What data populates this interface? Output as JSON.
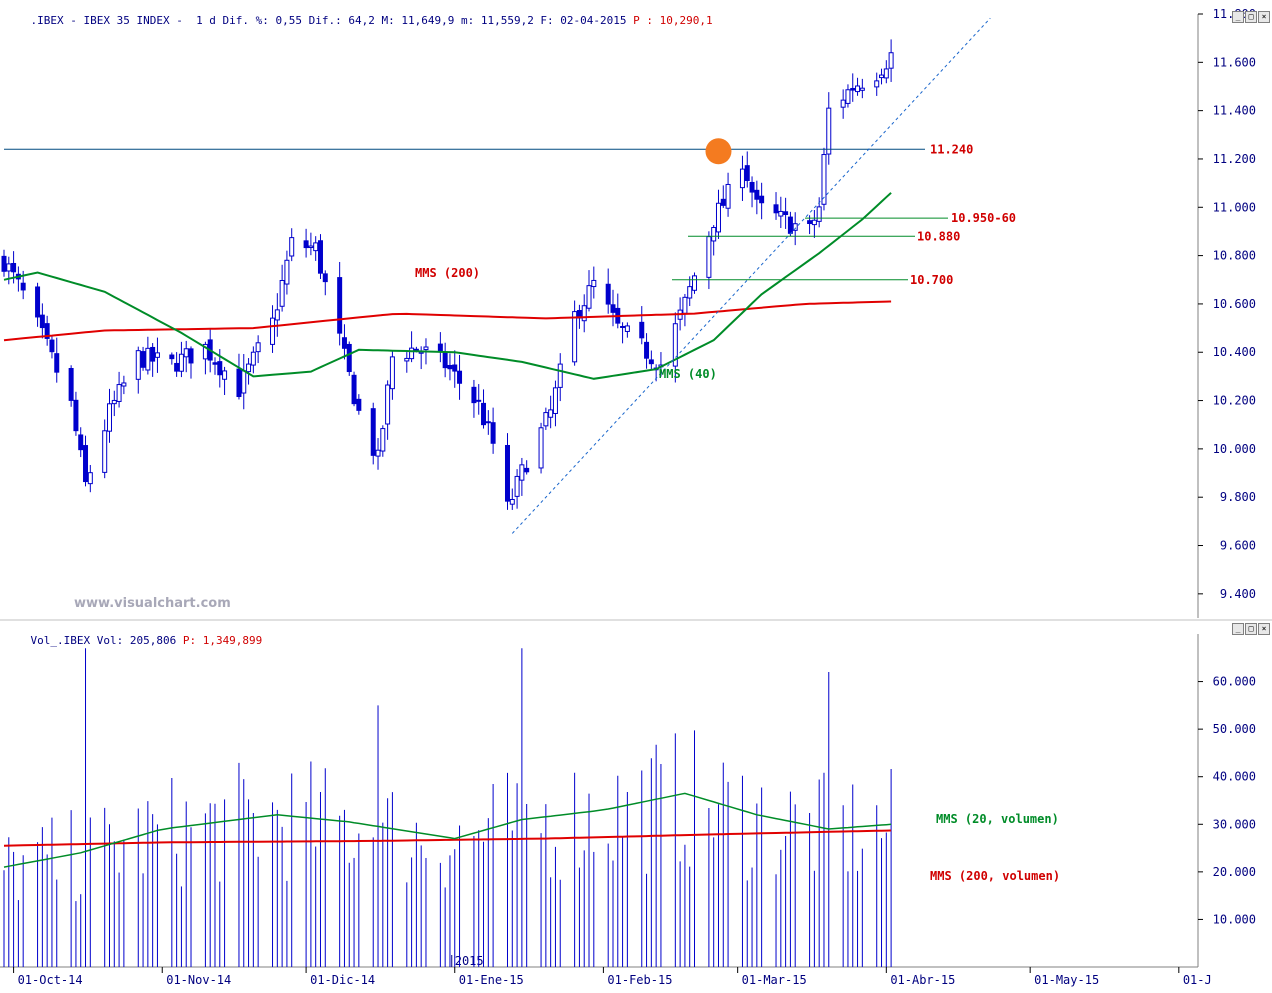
{
  "header_price": {
    "text_pre": ".IBEX - IBEX 35 INDEX -  1 d Dif. %: 0,55 Dif.: 64,2 M: 11,649,9 m: 11,559,2 F: 02-04-2015 ",
    "text_p": "P : 10,290,1"
  },
  "header_volume": {
    "text_pre": "Vol_.IBEX Vol: 205,806 ",
    "text_p": "P: 1,349,899"
  },
  "watermark": "www.visualchart.com",
  "year_label": "2015",
  "colors": {
    "candle": "#0000cc",
    "mms200": "#e00000",
    "mms40": "#008c28",
    "hline": "#004a80",
    "volume": "#0000cc",
    "highlight": "#f47b20"
  },
  "chart_data": [
    {
      "type": "candlestick",
      "name": "IBEX 35 INDEX",
      "ylim": [
        9300,
        11800
      ],
      "y_ticks": [
        9400,
        9600,
        9800,
        10000,
        10200,
        10400,
        10600,
        10800,
        11000,
        11200,
        11400,
        11600,
        11800
      ],
      "y_tick_labels": [
        "9.400",
        "9.600",
        "9.800",
        "10.000",
        "10.200",
        "10.400",
        "10.600",
        "10.800",
        "11.000",
        "11.200",
        "11.400",
        "11.600",
        "11.800"
      ],
      "x_ticks": [
        "2014-10-01",
        "2014-11-01",
        "2014-12-01",
        "2015-01-01",
        "2015-02-01",
        "2015-03-01",
        "2015-04-01",
        "2015-05-01",
        "2015-06-01"
      ],
      "x_tick_labels": [
        "01-Oct-14",
        "01-Nov-14",
        "01-Dic-14",
        "01-Ene-15",
        "01-Feb-15",
        "01-Mar-15",
        "01-Abr-15",
        "01-May-15",
        "01-J"
      ],
      "x_range": [
        "2014-09-29",
        "2015-06-05"
      ],
      "ohlc_anchors": {
        "dates": [
          "2014-09-29",
          "2014-10-03",
          "2014-10-08",
          "2014-10-13",
          "2014-10-16",
          "2014-10-21",
          "2014-10-27",
          "2014-11-03",
          "2014-11-10",
          "2014-11-17",
          "2014-11-24",
          "2014-11-28",
          "2014-12-03",
          "2014-12-08",
          "2014-12-12",
          "2014-12-16",
          "2014-12-19",
          "2014-12-24",
          "2014-12-30",
          "2015-01-06",
          "2015-01-09",
          "2015-01-12",
          "2015-01-16",
          "2015-01-21",
          "2015-01-26",
          "2015-01-30",
          "2015-02-04",
          "2015-02-09",
          "2015-02-13",
          "2015-02-18",
          "2015-02-24",
          "2015-02-27",
          "2015-03-02",
          "2015-03-05",
          "2015-03-10",
          "2015-03-16",
          "2015-03-18",
          "2015-03-20",
          "2015-03-25",
          "2015-03-30",
          "2015-04-02"
        ],
        "close": [
          10780,
          10640,
          10420,
          10180,
          9850,
          10150,
          10380,
          10350,
          10420,
          10250,
          10520,
          10850,
          10830,
          10450,
          10150,
          9950,
          10380,
          10420,
          10350,
          10180,
          10020,
          9750,
          9950,
          10150,
          10550,
          10680,
          10500,
          10420,
          10350,
          10600,
          10950,
          11050,
          11200,
          11000,
          10950,
          10900,
          11000,
          11400,
          11500,
          11560,
          11630
        ]
      },
      "annotations": {
        "hlines": [
          {
            "label": "11.240",
            "y": 11240
          },
          {
            "label": "10.950-60",
            "y": 10955
          },
          {
            "label": "10.880",
            "y": 10880
          },
          {
            "label": "10.700",
            "y": 10700
          }
        ],
        "trendline": {
          "from": [
            "2015-01-13",
            9650
          ],
          "to": [
            "2015-04-06",
            11700
          ]
        },
        "highlight_circle": {
          "date": "2015-02-25",
          "y": 11240
        },
        "series_labels": [
          {
            "label": "MMS (200)",
            "near": [
              "2014-12-08",
              10650
            ]
          },
          {
            "label": "MMS (40)",
            "near": [
              "2015-02-16",
              10200
            ]
          }
        ]
      },
      "series": [
        {
          "name": "MMS (200)",
          "anchors_dates": [
            "2014-09-29",
            "2014-10-20",
            "2014-11-20",
            "2014-12-20",
            "2015-01-20",
            "2015-02-20",
            "2015-03-15",
            "2015-04-02"
          ],
          "values": [
            10450,
            10490,
            10500,
            10560,
            10540,
            10560,
            10600,
            10610
          ]
        },
        {
          "name": "MMS (40)",
          "anchors_dates": [
            "2014-09-29",
            "2014-10-06",
            "2014-10-20",
            "2014-11-05",
            "2014-11-20",
            "2014-12-02",
            "2014-12-12",
            "2015-01-01",
            "2015-01-15",
            "2015-01-30",
            "2015-02-12",
            "2015-02-24",
            "2015-03-06",
            "2015-03-18",
            "2015-03-27",
            "2015-04-02"
          ],
          "values": [
            10700,
            10730,
            10650,
            10480,
            10300,
            10320,
            10410,
            10400,
            10360,
            10290,
            10330,
            10450,
            10640,
            10810,
            10950,
            11060
          ]
        }
      ]
    },
    {
      "type": "bar",
      "name": "Vol_.IBEX",
      "ylim": [
        0,
        70000
      ],
      "y_ticks": [
        10000,
        20000,
        30000,
        40000,
        50000,
        60000
      ],
      "y_tick_labels": [
        "10.000",
        "20.000",
        "30.000",
        "40.000",
        "50.000",
        "60.000"
      ],
      "volume_spikes": [
        {
          "date": "2014-10-16",
          "value": 67000
        },
        {
          "date": "2014-12-16",
          "value": 55000
        },
        {
          "date": "2015-01-15",
          "value": 67000
        },
        {
          "date": "2015-03-20",
          "value": 62000
        }
      ],
      "series": [
        {
          "name": "MMS (20, volumen)",
          "anchors_dates": [
            "2014-09-29",
            "2014-10-15",
            "2014-11-01",
            "2014-11-25",
            "2014-12-10",
            "2015-01-01",
            "2015-01-15",
            "2015-02-01",
            "2015-02-18",
            "2015-03-05",
            "2015-03-20",
            "2015-04-02"
          ],
          "values": [
            21000,
            24000,
            29000,
            32000,
            30500,
            27000,
            31000,
            33000,
            36500,
            32000,
            29000,
            30000
          ]
        },
        {
          "name": "MMS (200, volumen)",
          "anchors_dates": [
            "2014-09-29",
            "2014-11-01",
            "2014-12-15",
            "2015-01-20",
            "2015-03-01",
            "2015-04-02"
          ],
          "values": [
            25500,
            26200,
            26500,
            27000,
            28000,
            28700
          ]
        }
      ]
    }
  ]
}
